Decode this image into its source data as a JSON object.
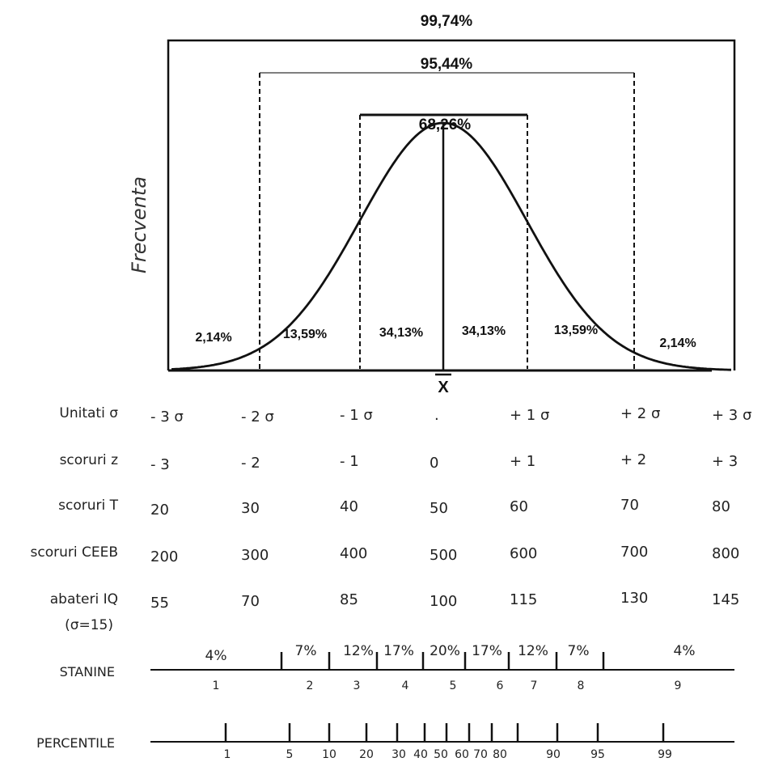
{
  "ylabel": "Frecventa",
  "mean_symbol": "X",
  "brackets": [
    {
      "label": "99,74%",
      "from": -3,
      "to": 3
    },
    {
      "label": "95,44%",
      "from": -2,
      "to": 2
    },
    {
      "label": "68,26%",
      "from": -1,
      "to": 1
    }
  ],
  "areas": [
    {
      "label": "2,14%",
      "center": -2.6
    },
    {
      "label": "13,59%",
      "center": -1.5
    },
    {
      "label": "34,13%",
      "center": -0.5
    },
    {
      "label": "34,13%",
      "center": 0.5
    },
    {
      "label": "13,59%",
      "center": 1.5
    },
    {
      "label": "2,14%",
      "center": 2.6
    }
  ],
  "score_rows": [
    {
      "label": "Unitati σ",
      "values": [
        "- 3 σ",
        "- 2 σ",
        "- 1 σ",
        ".",
        "+ 1 σ",
        "+ 2 σ",
        "+ 3 σ"
      ]
    },
    {
      "label": "scoruri z",
      "values": [
        "- 3",
        "- 2",
        "- 1",
        "0",
        "+ 1",
        "+ 2",
        "+ 3"
      ]
    },
    {
      "label": "scoruri T",
      "values": [
        "20",
        "30",
        "40",
        "50",
        "60",
        "70",
        "80"
      ]
    },
    {
      "label": "scoruri CEEB",
      "values": [
        "200",
        "300",
        "400",
        "500",
        "600",
        "700",
        "800"
      ]
    },
    {
      "label": "abateri IQ",
      "label2": "(σ=15)",
      "values": [
        "55",
        "70",
        "85",
        "100",
        "115",
        "130",
        "145"
      ]
    }
  ],
  "stanine": {
    "label": "STANINE",
    "percents": [
      "4%",
      "7%",
      "12%",
      "17%",
      "20%",
      "17%",
      "12%",
      "7%",
      "4%"
    ],
    "numbers": [
      "1",
      "2",
      "3",
      "4",
      "5",
      "6",
      "7",
      "8",
      "9"
    ]
  },
  "percentile": {
    "label": "PERCENTILE",
    "values": [
      "1",
      "5",
      "10",
      "20",
      "30",
      "40",
      "50",
      "60",
      "70",
      "80",
      "90",
      "95",
      "99"
    ]
  }
}
